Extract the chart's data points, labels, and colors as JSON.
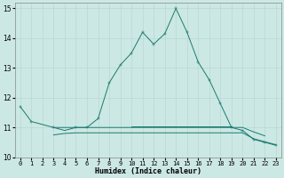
{
  "xlabel": "Humidex (Indice chaleur)",
  "x": [
    0,
    1,
    2,
    3,
    4,
    5,
    6,
    7,
    8,
    9,
    10,
    11,
    12,
    13,
    14,
    15,
    16,
    17,
    18,
    19,
    20,
    21,
    22,
    23
  ],
  "line1": [
    11.7,
    11.2,
    null,
    11.0,
    null,
    11.0,
    11.0,
    11.3,
    12.5,
    13.1,
    13.5,
    14.2,
    13.8,
    14.15,
    15.0,
    14.2,
    13.2,
    12.6,
    11.8,
    11.0,
    10.9,
    10.6,
    10.5,
    10.4
  ],
  "line2": [
    null,
    null,
    null,
    10.75,
    10.8,
    10.82,
    10.82,
    10.82,
    10.82,
    10.82,
    10.82,
    10.82,
    10.82,
    10.82,
    10.82,
    10.82,
    10.82,
    10.82,
    10.82,
    10.82,
    10.82,
    10.62,
    10.52,
    10.42
  ],
  "line3": [
    null,
    null,
    null,
    11.0,
    10.9,
    11.0,
    11.0,
    11.0,
    11.0,
    11.0,
    11.0,
    11.0,
    11.0,
    11.0,
    11.0,
    11.0,
    11.0,
    11.0,
    11.0,
    11.0,
    11.0,
    10.85,
    10.72,
    null
  ],
  "line4": [
    null,
    null,
    null,
    null,
    null,
    null,
    null,
    null,
    null,
    null,
    11.05,
    11.05,
    11.05,
    11.05,
    11.05,
    11.05,
    11.05,
    11.05,
    11.05,
    11.05,
    null,
    null,
    null,
    null
  ],
  "ylim": [
    10,
    15.2
  ],
  "xlim": [
    -0.5,
    23.5
  ],
  "yticks": [
    10,
    11,
    12,
    13,
    14,
    15
  ],
  "xticks": [
    0,
    1,
    2,
    3,
    4,
    5,
    6,
    7,
    8,
    9,
    10,
    11,
    12,
    13,
    14,
    15,
    16,
    17,
    18,
    19,
    20,
    21,
    22,
    23
  ],
  "line_color": "#1a7a6e",
  "bg_color": "#cce8e4",
  "grid_color": "#b8d8d4",
  "markersize": 2.5
}
